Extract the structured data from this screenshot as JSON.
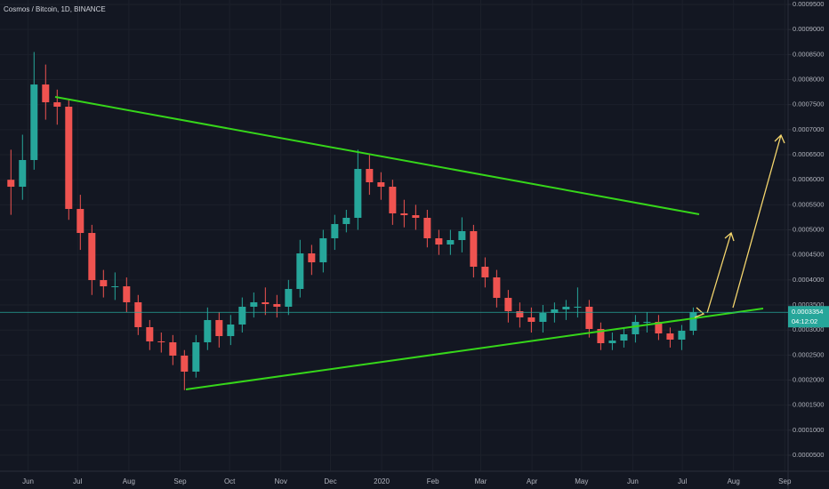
{
  "chart_data": {
    "type": "candlestick",
    "title": "Cosmos / Bitcoin, 1D, BINANCE",
    "x": [
      "2019-05-20",
      "2019-05-27",
      "2019-06-03",
      "2019-06-10",
      "2019-06-17",
      "2019-06-24",
      "2019-07-01",
      "2019-07-08",
      "2019-07-15",
      "2019-07-22",
      "2019-07-29",
      "2019-08-05",
      "2019-08-12",
      "2019-08-19",
      "2019-08-26",
      "2019-09-02",
      "2019-09-09",
      "2019-09-16",
      "2019-09-23",
      "2019-09-30",
      "2019-10-07",
      "2019-10-14",
      "2019-10-21",
      "2019-10-28",
      "2019-11-04",
      "2019-11-11",
      "2019-11-18",
      "2019-11-25",
      "2019-12-02",
      "2019-12-09",
      "2019-12-16",
      "2019-12-23",
      "2019-12-30",
      "2020-01-06",
      "2020-01-13",
      "2020-01-20",
      "2020-01-27",
      "2020-02-03",
      "2020-02-10",
      "2020-02-17",
      "2020-02-24",
      "2020-03-02",
      "2020-03-09",
      "2020-03-16",
      "2020-03-23",
      "2020-03-30",
      "2020-04-06",
      "2020-04-13",
      "2020-04-20",
      "2020-04-27",
      "2020-05-04",
      "2020-05-11",
      "2020-05-18",
      "2020-05-25",
      "2020-06-01",
      "2020-06-08",
      "2020-06-15",
      "2020-06-22",
      "2020-06-29",
      "2020-07-06"
    ],
    "open": [
      0.0006,
      0.0005861,
      0.0006394,
      0.0007902,
      0.0007547,
      0.0007459,
      0.0005417,
      0.0004938,
      0.0003997,
      0.0003873,
      0.0003873,
      0.0003554,
      0.0003057,
      0.0002773,
      0.0002755,
      0.0002489,
      0.0002169,
      0.0002755,
      0.0003199,
      0.0002879,
      0.000311,
      0.0003465,
      0.0003554,
      0.0003518,
      0.0003465,
      0.000382,
      0.000453,
      0.0004352,
      0.0004832,
      0.0005116,
      0.000524,
      0.0006216,
      0.000595,
      0.0005861,
      0.0005329,
      0.0005293,
      0.000524,
      0.0004832,
      0.0004707,
      0.0004796,
      0.0004974,
      0.0004264,
      0.0004051,
      0.0003642,
      0.0003376,
      0.0003252,
      0.0003163,
      0.0003341,
      0.0003412,
      0.0003465,
      0.0003465,
      0.0003021,
      0.0002737,
      0.000279,
      0.0002915,
      0.0003163,
      0.0003163,
      0.0002932,
      0.0002808,
      0.0002986
    ],
    "high": [
      0.00066,
      0.00069,
      0.000855,
      0.00083,
      0.00078,
      0.00076,
      0.00057,
      0.00051,
      0.00042,
      0.000415,
      0.000405,
      0.00037,
      0.00032,
      0.000295,
      0.00029,
      0.00026,
      0.00029,
      0.000345,
      0.000335,
      0.00033,
      0.000365,
      0.000375,
      0.000385,
      0.00037,
      0.0004,
      0.00048,
      0.00047,
      0.0005,
      0.00053,
      0.00054,
      0.00066,
      0.00065,
      0.000615,
      0.0006,
      0.00056,
      0.00055,
      0.00054,
      0.0005,
      0.0005,
      0.000525,
      0.00051,
      0.000445,
      0.00042,
      0.00038,
      0.000355,
      0.000345,
      0.00035,
      0.000355,
      0.00036,
      0.000385,
      0.00036,
      0.000315,
      0.000295,
      0.000305,
      0.00033,
      0.000335,
      0.00033,
      0.000305,
      0.00031,
      0.000345
    ],
    "low": [
      0.00053,
      0.00056,
      0.00062,
      0.00072,
      0.00071,
      0.00052,
      0.00046,
      0.00037,
      0.000365,
      0.00036,
      0.000335,
      0.00029,
      0.00026,
      0.000255,
      0.00023,
      0.00018,
      0.000205,
      0.00026,
      0.000265,
      0.00027,
      0.000295,
      0.000325,
      0.00033,
      0.000325,
      0.00033,
      0.000365,
      0.00041,
      0.000415,
      0.00046,
      0.000495,
      0.0005,
      0.00057,
      0.00056,
      0.00051,
      0.000505,
      0.0005,
      0.000465,
      0.00045,
      0.00045,
      0.000455,
      0.000405,
      0.000385,
      0.000345,
      0.000315,
      0.000305,
      0.000295,
      0.000295,
      0.000315,
      0.00032,
      0.000325,
      0.000285,
      0.00026,
      0.00026,
      0.000265,
      0.000275,
      0.000295,
      0.00028,
      0.000265,
      0.00026,
      0.00029
    ],
    "close": [
      0.0005861,
      0.0006394,
      0.0007902,
      0.0007547,
      0.0007459,
      0.0005417,
      0.0004938,
      0.0003997,
      0.0003873,
      0.0003873,
      0.0003554,
      0.0003057,
      0.0002773,
      0.0002755,
      0.0002489,
      0.0002169,
      0.0002755,
      0.0003199,
      0.0002879,
      0.000311,
      0.0003465,
      0.0003554,
      0.0003518,
      0.0003465,
      0.000382,
      0.000453,
      0.0004352,
      0.0004832,
      0.0005116,
      0.000524,
      0.0006216,
      0.000595,
      0.0005861,
      0.0005329,
      0.0005293,
      0.000524,
      0.0004832,
      0.0004707,
      0.0004796,
      0.0004974,
      0.0004264,
      0.0004051,
      0.0003642,
      0.0003376,
      0.0003252,
      0.0003163,
      0.0003341,
      0.0003412,
      0.0003465,
      0.0003465,
      0.0003021,
      0.0002737,
      0.000279,
      0.0002915,
      0.0003163,
      0.0003163,
      0.0002932,
      0.0002808,
      0.0002986,
      0.0003354
    ],
    "up_color": "#26a69a",
    "down_color": "#ef5350",
    "last_price": {
      "value": 0.0003354,
      "label": "0.0003354"
    },
    "countdown": "04:12:02",
    "xlim": [
      "2019-05-15",
      "2020-09-03"
    ],
    "xticks": [
      {
        "value": "2019-06-01",
        "label": "Jun"
      },
      {
        "value": "2019-07-01",
        "label": "Jul"
      },
      {
        "value": "2019-08-01",
        "label": "Aug"
      },
      {
        "value": "2019-09-01",
        "label": "Sep"
      },
      {
        "value": "2019-10-01",
        "label": "Oct"
      },
      {
        "value": "2019-11-01",
        "label": "Nov"
      },
      {
        "value": "2019-12-01",
        "label": "Dec"
      },
      {
        "value": "2020-01-01",
        "label": "2020"
      },
      {
        "value": "2020-02-01",
        "label": "Feb"
      },
      {
        "value": "2020-03-01",
        "label": "Mar"
      },
      {
        "value": "2020-04-01",
        "label": "Apr"
      },
      {
        "value": "2020-05-01",
        "label": "May"
      },
      {
        "value": "2020-06-01",
        "label": "Jun"
      },
      {
        "value": "2020-07-01",
        "label": "Jul"
      },
      {
        "value": "2020-08-01",
        "label": "Aug"
      },
      {
        "value": "2020-09-01",
        "label": "Sep"
      }
    ],
    "ylim": [
      1.81e-05,
      0.0009589
    ],
    "yticks": [
      {
        "value": 5e-05,
        "label": "0.0000500"
      },
      {
        "value": 0.0001,
        "label": "0.0001000"
      },
      {
        "value": 0.00015,
        "label": "0.0001500"
      },
      {
        "value": 0.0002,
        "label": "0.0002000"
      },
      {
        "value": 0.00025,
        "label": "0.0002500"
      },
      {
        "value": 0.0003,
        "label": "0.0003000"
      },
      {
        "value": 0.00035,
        "label": "0.0003500"
      },
      {
        "value": 0.0004,
        "label": "0.0004000"
      },
      {
        "value": 0.00045,
        "label": "0.0004500"
      },
      {
        "value": 0.0005,
        "label": "0.0005000"
      },
      {
        "value": 0.00055,
        "label": "0.0005500"
      },
      {
        "value": 0.0006,
        "label": "0.0006000"
      },
      {
        "value": 0.00065,
        "label": "0.0006500"
      },
      {
        "value": 0.0007,
        "label": "0.0007000"
      },
      {
        "value": 0.00075,
        "label": "0.0007500"
      },
      {
        "value": 0.0008,
        "label": "0.0008000"
      },
      {
        "value": 0.00085,
        "label": "0.0008500"
      },
      {
        "value": 0.0009,
        "label": "0.0009000"
      },
      {
        "value": 0.00095,
        "label": "0.0009500"
      }
    ],
    "grid": true
  }
}
